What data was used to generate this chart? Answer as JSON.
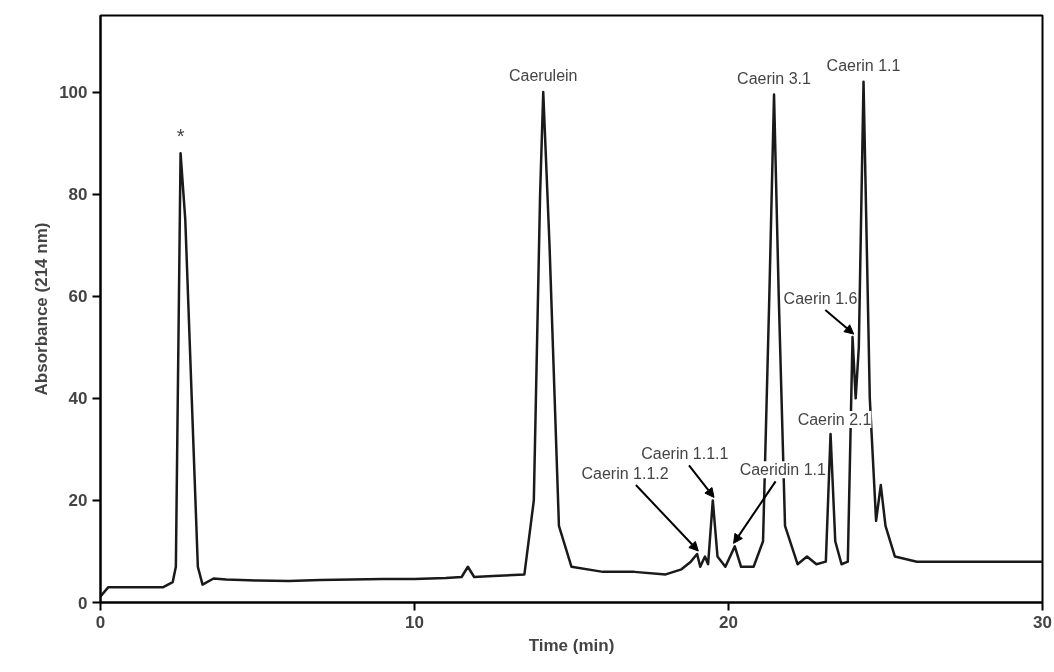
{
  "chart_data": {
    "type": "line",
    "xlabel": "Time (min)",
    "ylabel": "Absorbance (214 nm)",
    "xlim": [
      0,
      30
    ],
    "ylim": [
      0,
      115
    ],
    "xticks": [
      0,
      10,
      20,
      30
    ],
    "yticks": [
      0,
      20,
      40,
      60,
      80,
      100
    ],
    "grid": false,
    "marker": "none",
    "line_style": "solid",
    "series": [
      {
        "color": "#1a1a1a",
        "x": [
          0,
          0.25,
          1.0,
          2.0,
          2.3,
          2.4,
          2.55,
          2.7,
          3.1,
          3.25,
          3.6,
          4.0,
          5.0,
          6.0,
          7.0,
          8.0,
          9.0,
          10.0,
          11.0,
          11.5,
          11.7,
          11.9,
          12.5,
          13.5,
          13.8,
          14.0,
          14.1,
          14.3,
          14.6,
          15.0,
          16.0,
          17.0,
          18.0,
          18.5,
          18.8,
          19.0,
          19.1,
          19.25,
          19.35,
          19.5,
          19.65,
          19.9,
          20.2,
          20.4,
          20.8,
          21.1,
          21.3,
          21.45,
          21.6,
          21.8,
          22.2,
          22.5,
          22.8,
          23.1,
          23.25,
          23.4,
          23.6,
          23.8,
          23.95,
          24.05,
          24.15,
          24.3,
          24.5,
          24.7,
          24.85,
          25.0,
          25.3,
          26.0,
          28.0,
          30.0
        ],
        "values": [
          1.2,
          3,
          3,
          3,
          4,
          7,
          88,
          75,
          7,
          3.5,
          4.7,
          4.5,
          4.3,
          4.2,
          4.4,
          4.5,
          4.6,
          4.6,
          4.8,
          5,
          7,
          5,
          5.2,
          5.5,
          20,
          80,
          100,
          70,
          15,
          7,
          6,
          6,
          5.5,
          6.5,
          8,
          9.5,
          7,
          9,
          7.5,
          20,
          9,
          7,
          11,
          7,
          7,
          12,
          60,
          99.5,
          60,
          15,
          7.5,
          9,
          7.5,
          8,
          33,
          12,
          7.5,
          8,
          52,
          40,
          50,
          102,
          40,
          16,
          23,
          15,
          9,
          8,
          8,
          8
        ]
      }
    ],
    "annotations": [
      {
        "text": "*",
        "x": 2.55,
        "y": 88
      },
      {
        "text": "Caerulein",
        "x": 14.1,
        "y": 100
      },
      {
        "text": "Caerin 3.1",
        "x": 21.45,
        "y": 99.5
      },
      {
        "text": "Caerin 1.1",
        "x": 24.3,
        "y": 102
      },
      {
        "text": "Caerin 1.6",
        "x": 23.95,
        "y": 52
      },
      {
        "text": "Caerin 2.1",
        "x": 23.25,
        "y": 33
      },
      {
        "text": "Caerin 1.1.1",
        "x": 19.5,
        "y": 20
      },
      {
        "text": "Caeridin 1.1",
        "x": 20.2,
        "y": 11
      },
      {
        "text": "Caerin 1.1.2",
        "x": 19.0,
        "y": 9.5
      }
    ]
  }
}
